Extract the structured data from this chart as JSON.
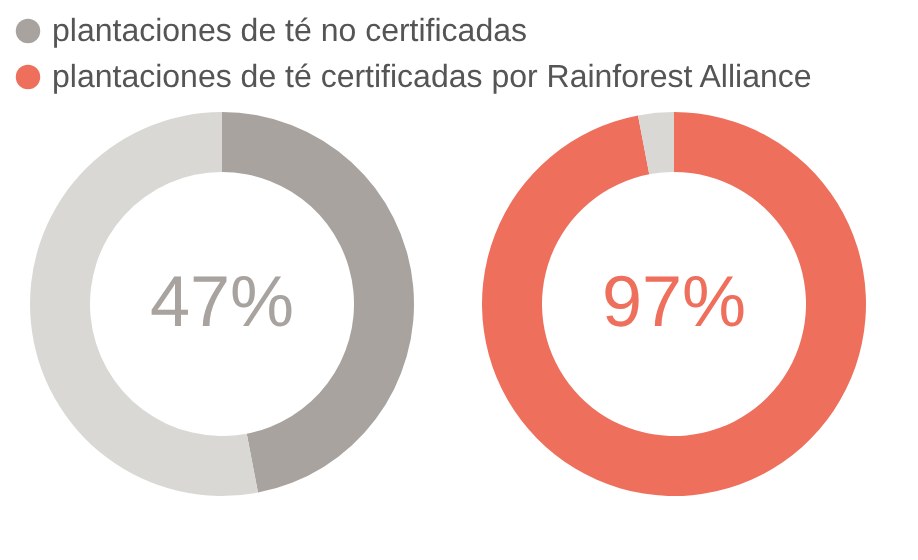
{
  "chart_data": [
    {
      "type": "donut",
      "categories": [
        "plantaciones de té no certificadas",
        null
      ],
      "values": [
        47,
        53
      ],
      "colors": [
        "#a8a39f",
        "#d9d8d4"
      ],
      "value_labels": [
        "47%",
        null
      ],
      "legend": "top"
    },
    {
      "type": "donut",
      "categories": [
        "plantaciones de té certificadas por Rainforest Alliance",
        null
      ],
      "values": [
        97,
        3
      ],
      "colors": [
        "#ef6f5d",
        "#d9d8d4"
      ],
      "value_labels": [
        "97%",
        null
      ]
    }
  ]
}
